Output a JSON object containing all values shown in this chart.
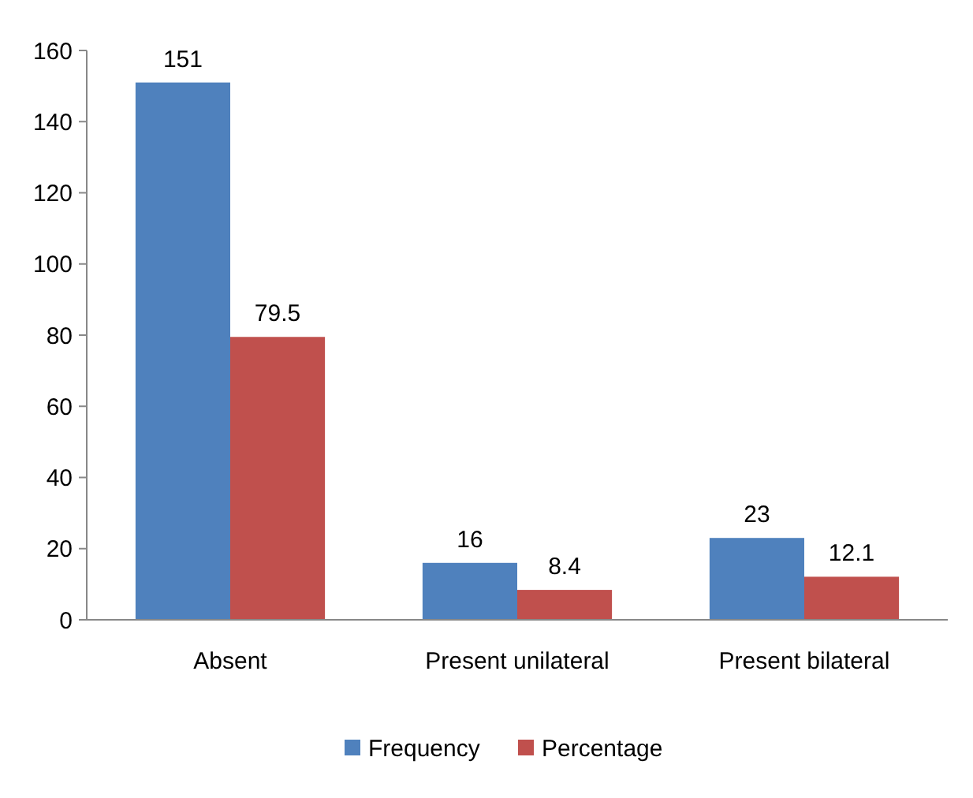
{
  "chart_data": {
    "type": "bar",
    "categories": [
      "Absent",
      "Present unilateral",
      "Present bilateral"
    ],
    "series": [
      {
        "name": "Frequency",
        "color": "#4f81bd",
        "values": [
          151,
          16,
          23
        ]
      },
      {
        "name": "Percentage",
        "color": "#c0504d",
        "values": [
          79.5,
          8.4,
          12.1
        ]
      }
    ],
    "ylim": [
      0,
      160
    ],
    "yticks": [
      0,
      20,
      40,
      60,
      80,
      100,
      120,
      140,
      160
    ],
    "grid": false,
    "legend": "bottom",
    "data_labels": true
  }
}
